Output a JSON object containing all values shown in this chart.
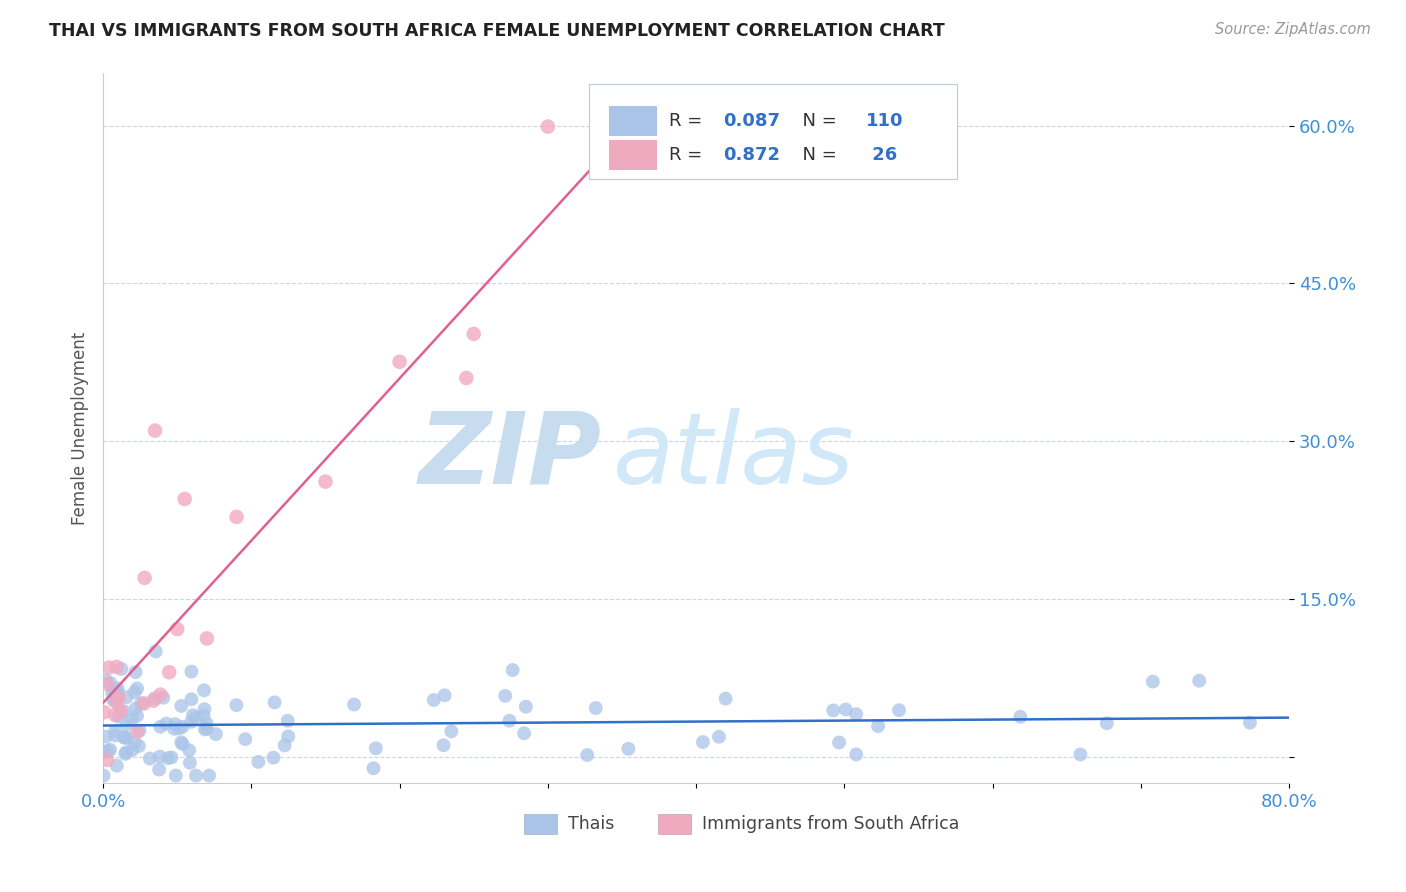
{
  "title": "THAI VS IMMIGRANTS FROM SOUTH AFRICA FEMALE UNEMPLOYMENT CORRELATION CHART",
  "source": "Source: ZipAtlas.com",
  "ylabel": "Female Unemployment",
  "yticks": [
    0.0,
    0.15,
    0.3,
    0.45,
    0.6
  ],
  "ytick_labels": [
    "",
    "15.0%",
    "30.0%",
    "45.0%",
    "60.0%"
  ],
  "xlim": [
    0.0,
    0.8
  ],
  "ylim": [
    -0.025,
    0.65
  ],
  "color_thai": "#aac4e8",
  "color_sa": "#f0aac0",
  "color_thai_line": "#3070c8",
  "color_sa_line": "#e06090",
  "color_ytick": "#4090d8",
  "color_title": "#222222",
  "watermark_zip": "ZIP",
  "watermark_atlas": "atlas",
  "watermark_color": "#d8ecf8",
  "legend_r1_val": "0.087",
  "legend_n1_val": "110",
  "legend_r2_val": "0.872",
  "legend_n2_val": " 26"
}
